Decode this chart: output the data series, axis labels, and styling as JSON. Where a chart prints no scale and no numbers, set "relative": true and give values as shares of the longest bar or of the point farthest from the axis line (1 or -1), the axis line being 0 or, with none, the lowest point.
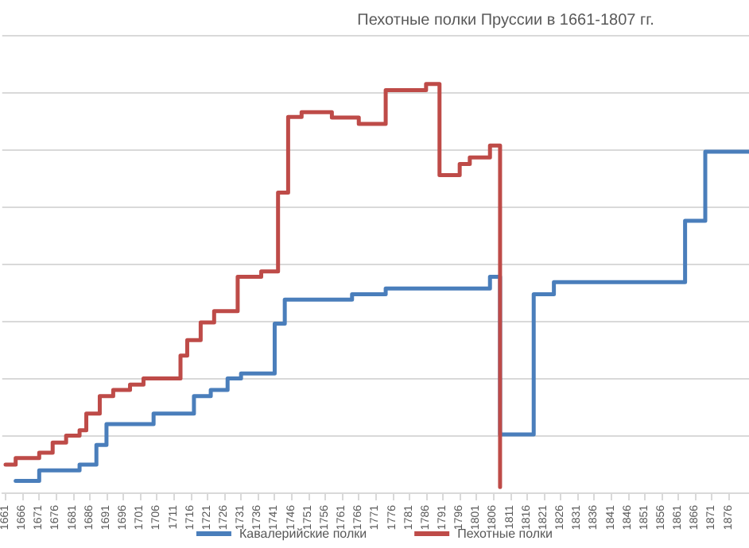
{
  "chart_data": {
    "type": "step",
    "title": "Пехотные полки Пруссии в 1661-1807 гг.",
    "relative": true,
    "grid": "y",
    "legend": "bottom",
    "marker": "none",
    "line_style": "solid",
    "xlim": [
      1660,
      1882
    ],
    "xticks": [
      1661,
      1666,
      1671,
      1676,
      1681,
      1686,
      1691,
      1696,
      1701,
      1706,
      1711,
      1716,
      1721,
      1726,
      1731,
      1736,
      1741,
      1746,
      1751,
      1756,
      1761,
      1766,
      1771,
      1776,
      1781,
      1786,
      1791,
      1796,
      1801,
      1806,
      1811,
      1816,
      1821,
      1826,
      1831,
      1836,
      1841,
      1846,
      1851,
      1856,
      1861,
      1866,
      1871,
      1876
    ],
    "series": [
      {
        "name": "Кавалерийские полки",
        "color": "#4a7ebb",
        "x": [
          1664,
          1671,
          1683,
          1688,
          1691,
          1705,
          1717,
          1722,
          1727,
          1731,
          1741,
          1744,
          1764,
          1774,
          1805,
          1808,
          1818,
          1824,
          1863,
          1869,
          1882
        ],
        "values": [
          0.028,
          0.054,
          0.068,
          0.116,
          0.167,
          0.193,
          0.236,
          0.251,
          0.279,
          0.291,
          0.413,
          0.472,
          0.485,
          0.499,
          0.528,
          0.142,
          0.485,
          0.515,
          0.665,
          0.834,
          0.834
        ]
      },
      {
        "name": "Пехотные полки",
        "color": "#be4b48",
        "x": [
          1661,
          1664,
          1671,
          1675,
          1679,
          1683,
          1685,
          1689,
          1693,
          1698,
          1702,
          1713,
          1715,
          1719,
          1723,
          1730,
          1737,
          1742,
          1745,
          1749,
          1758,
          1766,
          1774,
          1786,
          1790,
          1796,
          1799,
          1805,
          1808
        ],
        "values": [
          0.068,
          0.084,
          0.097,
          0.122,
          0.139,
          0.152,
          0.193,
          0.236,
          0.251,
          0.264,
          0.279,
          0.335,
          0.373,
          0.416,
          0.444,
          0.528,
          0.541,
          0.734,
          0.919,
          0.931,
          0.918,
          0.902,
          0.985,
          1,
          0.777,
          0.804,
          0.82,
          0.849,
          0.013
        ]
      }
    ]
  }
}
